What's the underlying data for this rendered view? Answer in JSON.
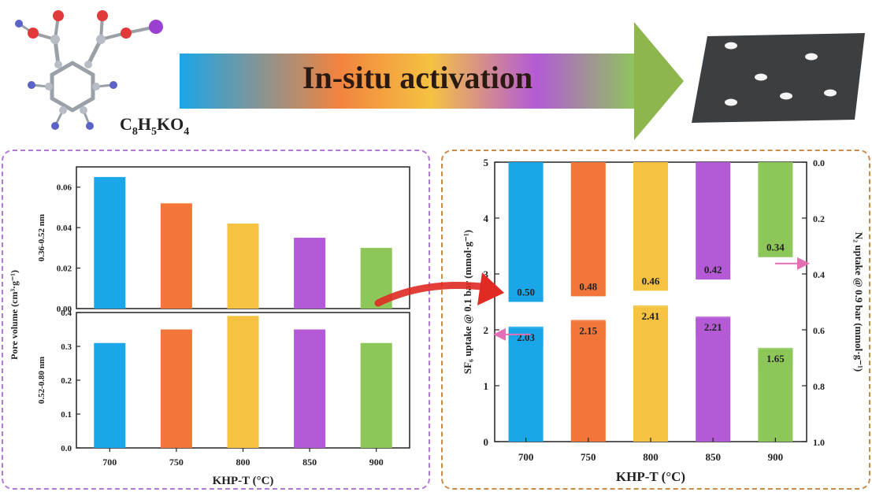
{
  "header": {
    "arrow_label": "In-situ activation",
    "formula_main": "C",
    "formula_parts": [
      "C",
      "8",
      "H",
      "5",
      "KO",
      "4"
    ],
    "colors": {
      "arrow_gradient": [
        "#1aa6e8",
        "#f2833f",
        "#f5c242",
        "#b45ad6",
        "#8dc75a"
      ],
      "arrow_head": "#8db74d",
      "sheet": "#3c3f42",
      "molecule_bond": "#9aa0a8",
      "oxygen": "#e23a3a",
      "hydrogen": "#5b62c8",
      "potassium": "#9b3fd0"
    }
  },
  "chart_data": [
    {
      "type": "bar",
      "panel": "left-top",
      "categories": [
        "700",
        "750",
        "800",
        "850",
        "900"
      ],
      "values": [
        0.065,
        0.052,
        0.042,
        0.035,
        0.03
      ],
      "ylabel_line1": "Pore volume (cm³·g⁻¹)",
      "ylabel_line2": "0.36-0.52 nm",
      "ylim": [
        0,
        0.07
      ],
      "yticks": [
        "0.00",
        "0.02",
        "0.04",
        "0.06"
      ],
      "colors": [
        "#1aa6e8",
        "#f2763a",
        "#f5c242",
        "#b45ad6",
        "#8dc75a"
      ]
    },
    {
      "type": "bar",
      "panel": "left-bottom",
      "categories": [
        "700",
        "750",
        "800",
        "850",
        "900"
      ],
      "values": [
        0.31,
        0.35,
        0.39,
        0.35,
        0.31
      ],
      "ylabel_line2": "0.52-0.80 nm",
      "ylim": [
        0,
        0.4
      ],
      "yticks": [
        "0.0",
        "0.1",
        "0.2",
        "0.3",
        "0.4"
      ],
      "xlabel": "KHP-T (°C)",
      "colors": [
        "#1aa6e8",
        "#f2763a",
        "#f5c242",
        "#b45ad6",
        "#8dc75a"
      ]
    },
    {
      "type": "bar",
      "panel": "right",
      "categories": [
        "700",
        "750",
        "800",
        "850",
        "900"
      ],
      "xlabel": "KHP-T (°C)",
      "ylabel_left": "SF₆ uptake @ 0.1 bar (mmol·g⁻¹)",
      "ylabel_right": "N₂ uptake @ 0.9 bar (mmol·g⁻¹)",
      "ylim_left": [
        0,
        5
      ],
      "ylim_right": [
        0,
        1.0
      ],
      "yticks_left": [
        "0",
        "1",
        "2",
        "3",
        "4",
        "5"
      ],
      "yticks_right": [
        "0.0",
        "0.2",
        "0.4",
        "0.6",
        "0.8",
        "1.0"
      ],
      "series": [
        {
          "axis": "left",
          "values": [
            2.03,
            2.15,
            2.41,
            2.21,
            1.65
          ],
          "labels": [
            "2.03",
            "2.15",
            "2.41",
            "2.21",
            "1.65"
          ]
        },
        {
          "axis": "right-inverted",
          "values": [
            0.5,
            0.48,
            0.46,
            0.42,
            0.34
          ],
          "labels": [
            "0.50",
            "0.48",
            "0.46",
            "0.42",
            "0.34"
          ]
        }
      ],
      "colors": [
        "#1aa6e8",
        "#f2763a",
        "#f5c242",
        "#b45ad6",
        "#8dc75a"
      ]
    }
  ]
}
